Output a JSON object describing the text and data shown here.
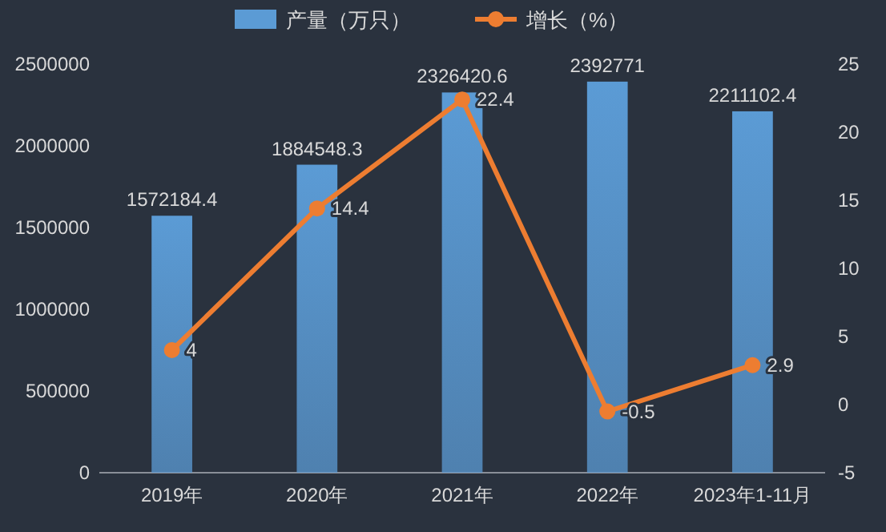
{
  "chart_data": {
    "type": "bar",
    "categories": [
      "2019年",
      "2020年",
      "2021年",
      "2022年",
      "2023年1-11月"
    ],
    "series": [
      {
        "name": "产量（万只）",
        "color": "#5b9bd5",
        "values": [
          1572184.4,
          1884548.3,
          2326420.6,
          2392771,
          2211102.4
        ]
      },
      {
        "name": "增长（%）",
        "type": "line",
        "axis": "y2",
        "color": "#ed7d31",
        "marker": "circle",
        "values": [
          4,
          14.4,
          22.4,
          -0.5,
          2.9
        ]
      }
    ],
    "ylim": [
      0,
      2500000
    ],
    "yticks": [
      0,
      500000,
      1000000,
      1500000,
      2000000,
      2500000
    ],
    "y2lim": [
      -5,
      25
    ],
    "y2ticks": [
      -5,
      0,
      5,
      10,
      15,
      20,
      25
    ],
    "data_labels": true,
    "legend": "top",
    "grid": false
  }
}
